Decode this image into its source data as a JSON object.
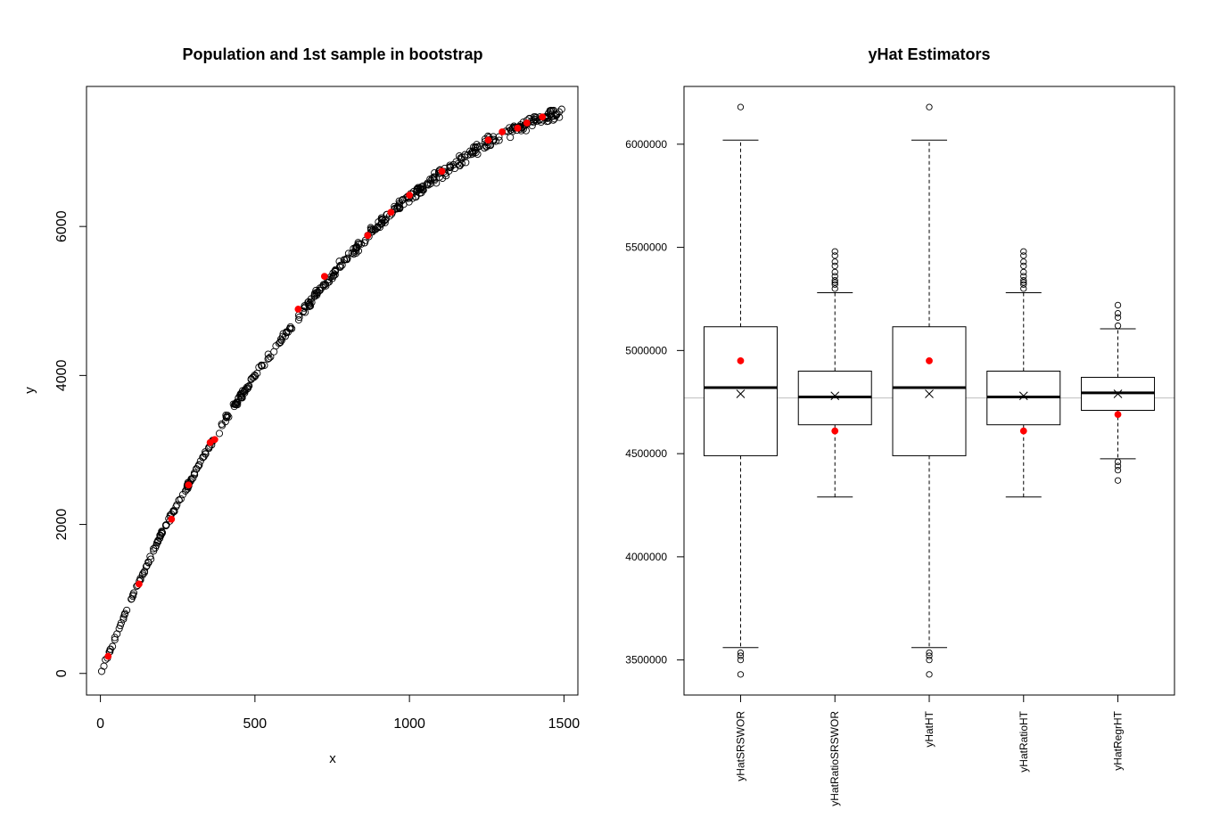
{
  "chart_data": [
    {
      "type": "scatter",
      "title": "Population and 1st sample in bootstrap",
      "xlabel": "x",
      "ylabel": "y",
      "xlim": [
        -45,
        1545
      ],
      "ylim": [
        -290,
        7880
      ],
      "xticks": [
        0,
        500,
        1000,
        1500
      ],
      "yticks": [
        0,
        2000,
        4000,
        6000
      ],
      "xtick_labels": [
        "0",
        "500",
        "1000",
        "1500"
      ],
      "ytick_labels": [
        "0",
        "2000",
        "4000",
        "6000"
      ],
      "grid": false,
      "series": [
        {
          "marker": "open-circle",
          "color": "#000000",
          "curve_points": [
            [
              0,
              0
            ],
            [
              100,
              1000
            ],
            [
              200,
              1900
            ],
            [
              300,
              2650
            ],
            [
              400,
              3380
            ],
            [
              500,
              4000
            ],
            [
              600,
              4560
            ],
            [
              700,
              5100
            ],
            [
              800,
              5600
            ],
            [
              900,
              6020
            ],
            [
              1000,
              6400
            ],
            [
              1100,
              6700
            ],
            [
              1200,
              7000
            ],
            [
              1300,
              7230
            ],
            [
              1400,
              7420
            ],
            [
              1500,
              7520
            ]
          ],
          "n_points": 500,
          "x_range": [
            0,
            1500
          ]
        },
        {
          "marker": "filled-circle",
          "color": "#ff0000",
          "points": [
            [
              25,
              230
            ],
            [
              125,
              1200
            ],
            [
              230,
              2070
            ],
            [
              285,
              2530
            ],
            [
              355,
              3100
            ],
            [
              370,
              3140
            ],
            [
              640,
              4890
            ],
            [
              725,
              5330
            ],
            [
              865,
              5880
            ],
            [
              940,
              6190
            ],
            [
              1000,
              6420
            ],
            [
              1105,
              6740
            ],
            [
              1255,
              7160
            ],
            [
              1300,
              7270
            ],
            [
              1350,
              7320
            ],
            [
              1380,
              7390
            ],
            [
              1430,
              7470
            ]
          ]
        }
      ]
    },
    {
      "type": "boxplot",
      "title": "yHat Estimators",
      "ylim": [
        3330000,
        6280000
      ],
      "yticks": [
        3500000,
        4000000,
        4500000,
        5000000,
        5500000,
        6000000
      ],
      "ytick_labels": [
        "3500000",
        "4000000",
        "4500000",
        "5000000",
        "5500000",
        "6000000"
      ],
      "categories": [
        "yHatSRSWOR",
        "yHatRatioSRSWOR",
        "yHatHT",
        "yHatRatioHT",
        "yHatRegrHT"
      ],
      "reference_line": 4770000,
      "reference_line_color": "#bebebe",
      "grid": false,
      "boxes": [
        {
          "name": "yHatSRSWOR",
          "whisker_low": 3560000,
          "q1": 4490000,
          "median": 4820000,
          "q3": 5115000,
          "whisker_high": 6020000,
          "outliers": [
            3430000,
            3500000,
            3520000,
            3535000,
            6180000
          ],
          "mean": 4790000,
          "red_point": 4950000
        },
        {
          "name": "yHatRatioSRSWOR",
          "whisker_low": 4290000,
          "q1": 4640000,
          "median": 4775000,
          "q3": 4900000,
          "whisker_high": 5280000,
          "outliers": [
            5300000,
            5320000,
            5330000,
            5340000,
            5360000,
            5380000,
            5410000,
            5430000,
            5460000,
            5480000
          ],
          "mean": 4780000,
          "red_point": 4610000
        },
        {
          "name": "yHatHT",
          "whisker_low": 3560000,
          "q1": 4490000,
          "median": 4820000,
          "q3": 5115000,
          "whisker_high": 6020000,
          "outliers": [
            3430000,
            3500000,
            3520000,
            3535000,
            6180000
          ],
          "mean": 4790000,
          "red_point": 4950000
        },
        {
          "name": "yHatRatioHT",
          "whisker_low": 4290000,
          "q1": 4640000,
          "median": 4775000,
          "q3": 4900000,
          "whisker_high": 5280000,
          "outliers": [
            5300000,
            5320000,
            5330000,
            5340000,
            5360000,
            5380000,
            5410000,
            5430000,
            5460000,
            5480000
          ],
          "mean": 4780000,
          "red_point": 4610000
        },
        {
          "name": "yHatRegrHT",
          "whisker_low": 4475000,
          "q1": 4710000,
          "median": 4795000,
          "q3": 4870000,
          "whisker_high": 5105000,
          "outliers": [
            4370000,
            4420000,
            4440000,
            4460000,
            5120000,
            5160000,
            5180000,
            5220000
          ],
          "mean": 4790000,
          "red_point": 4690000
        }
      ]
    }
  ]
}
